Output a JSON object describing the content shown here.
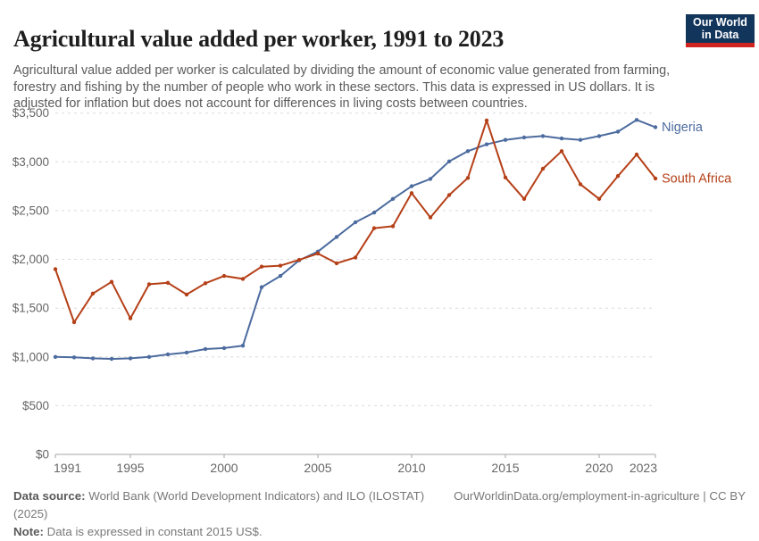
{
  "header": {
    "title": "Agricultural value added per worker, 1991 to 2023",
    "subtitle": "Agricultural value added per worker is calculated by dividing the amount of economic value generated from farming, forestry and fishing by the number of people who work in these sectors. This data is expressed in US dollars. It is adjusted for inflation but does not account for differences in living costs between countries.",
    "logo": {
      "line1": "Our World",
      "line2": "in Data",
      "bg": "#12355B",
      "stripe": "#CF2420"
    }
  },
  "chart_data": {
    "type": "line",
    "title": "Agricultural value added per worker, 1991 to 2023",
    "xlabel": "",
    "ylabel": "",
    "x": [
      1991,
      1992,
      1993,
      1994,
      1995,
      1996,
      1997,
      1998,
      1999,
      2000,
      2001,
      2002,
      2003,
      2004,
      2005,
      2006,
      2007,
      2008,
      2009,
      2010,
      2011,
      2012,
      2013,
      2014,
      2015,
      2016,
      2017,
      2018,
      2019,
      2020,
      2021,
      2022,
      2023
    ],
    "series": [
      {
        "name": "Nigeria",
        "color": "#4C6B9E",
        "values": [
          1000,
          995,
          985,
          980,
          985,
          1000,
          1025,
          1045,
          1080,
          1090,
          1115,
          1715,
          1830,
          1990,
          2080,
          2230,
          2380,
          2480,
          2620,
          2750,
          2825,
          3005,
          3110,
          3180,
          3225,
          3250,
          3265,
          3240,
          3225,
          3265,
          3310,
          3430,
          3355
        ]
      },
      {
        "name": "South Africa",
        "color": "#B54018",
        "values": [
          1900,
          1355,
          1650,
          1770,
          1395,
          1745,
          1760,
          1640,
          1755,
          1830,
          1800,
          1925,
          1935,
          1995,
          2060,
          1960,
          2020,
          2320,
          2340,
          2680,
          2430,
          2660,
          2835,
          3425,
          2840,
          2620,
          2930,
          3110,
          2770,
          2620,
          2855,
          3075,
          2830
        ]
      }
    ],
    "ylim": [
      0,
      3500
    ],
    "ytick_step": 500,
    "ytick_labels": [
      "$0",
      "$500",
      "$1,000",
      "$1,500",
      "$2,000",
      "$2,500",
      "$3,000",
      "$3,500"
    ],
    "xticks": [
      1991,
      1995,
      2000,
      2005,
      2010,
      2015,
      2020,
      2023
    ],
    "grid": "horizontal-dashed",
    "legend_position": "line-end-labels",
    "axis_color": "#a6a6a6",
    "grid_color": "#dcdcdc",
    "tick_label_color": "#666666"
  },
  "footer": {
    "source_label": "Data source:",
    "source_text": " World Bank (World Development Indicators) and ILO (ILOSTAT) (2025)",
    "link": "OurWorldinData.org/employment-in-agriculture | CC BY",
    "note_label": "Note:",
    "note_text": " Data is expressed in constant 2015 US$."
  }
}
